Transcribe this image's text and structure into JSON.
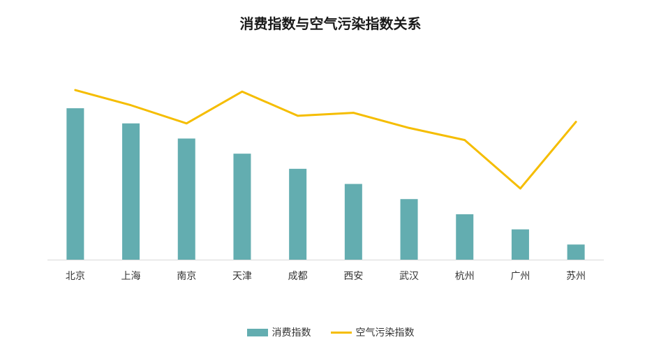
{
  "chart_data": {
    "type": "bar",
    "title": "消费指数与空气污染指数关系",
    "categories": [
      "北京",
      "上海",
      "南京",
      "天津",
      "成都",
      "西安",
      "武汉",
      "杭州",
      "广州",
      "苏州"
    ],
    "series": [
      {
        "name": "消费指数",
        "type": "bar",
        "color": "#63adb0",
        "values": [
          100,
          90,
          80,
          70,
          60,
          50,
          40,
          30,
          20,
          10
        ]
      },
      {
        "name": "空气污染指数",
        "type": "line",
        "color": "#f5bd00",
        "values": [
          112,
          102,
          90,
          111,
          95,
          97,
          87,
          79,
          47,
          91
        ]
      }
    ],
    "ylim": [
      0,
      130
    ],
    "grid": false,
    "legend": "bottom"
  }
}
